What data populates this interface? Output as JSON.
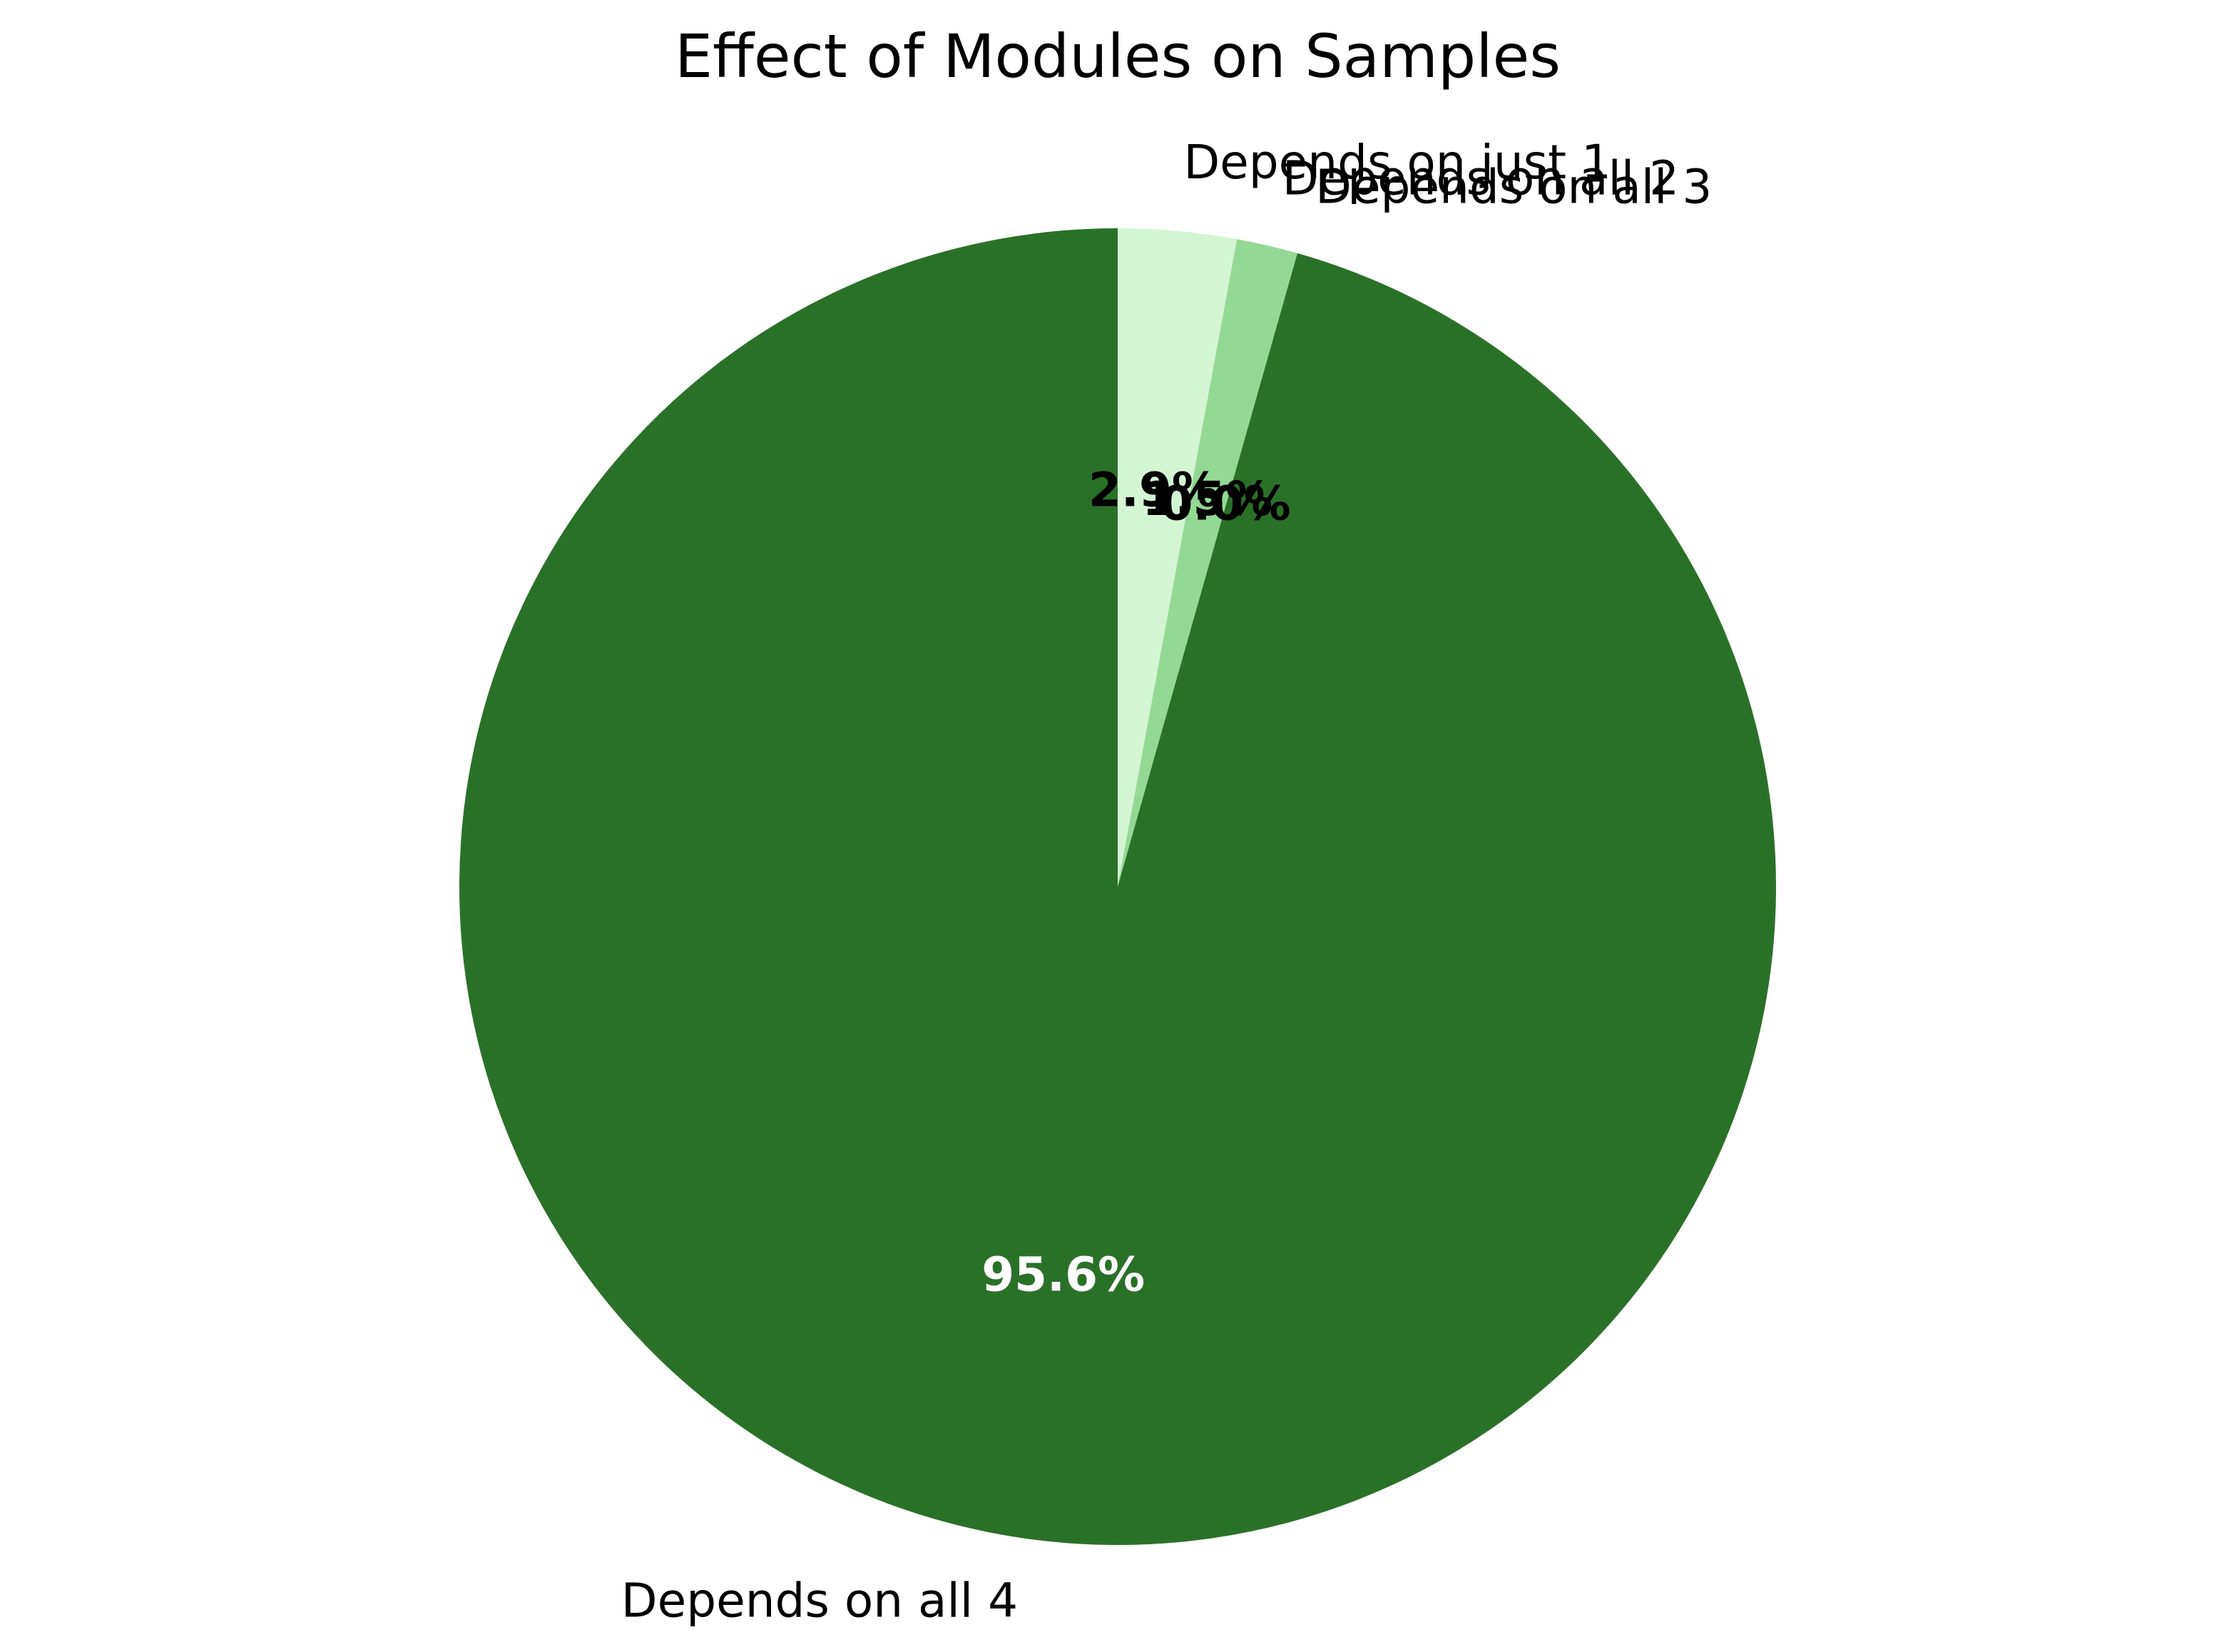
{
  "chart_data": {
    "type": "pie",
    "title": "Effect of Modules on Samples",
    "start_angle_deg": 90,
    "direction": "clockwise",
    "slices": [
      {
        "label": "Depends on just 1",
        "value": 2.9,
        "pct_label": "2.9%",
        "color": "#d4f5d4",
        "pct_color": "#000000"
      },
      {
        "label": "Depends on all 2",
        "value": 1.5,
        "pct_label": "1.5%",
        "color": "#93d993",
        "pct_color": "#000000"
      },
      {
        "label": "Depends on all 3",
        "value": 0.0,
        "pct_label": "0.0%",
        "color": "#4fa84f",
        "pct_color": "#000000"
      },
      {
        "label": "Depends on all 4",
        "value": 95.6,
        "pct_label": "95.6%",
        "color": "#2a7128",
        "pct_color": "#ffffff"
      }
    ]
  }
}
